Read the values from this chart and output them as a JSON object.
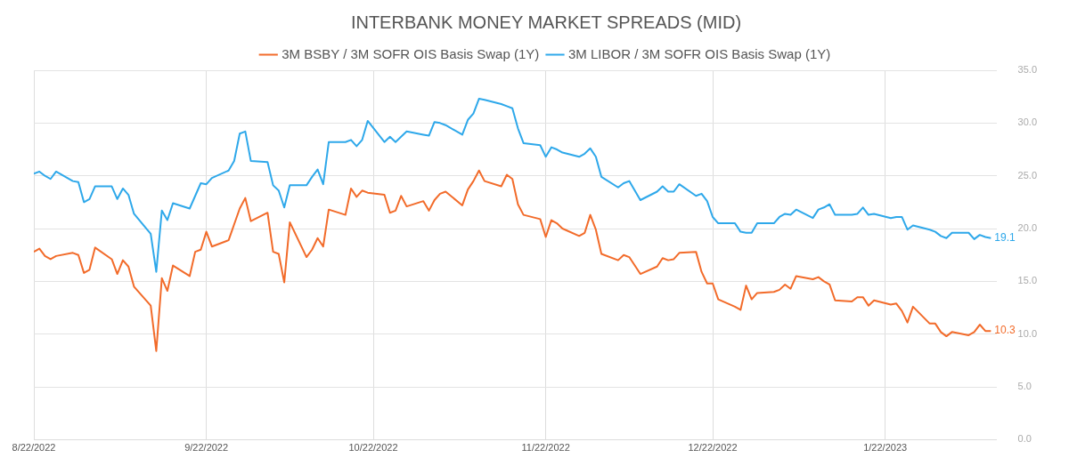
{
  "chart_data": {
    "type": "line",
    "title": "INTERBANK MONEY MARKET SPREADS (MID)",
    "x": [
      "2022-08-22",
      "2022-08-23",
      "2022-08-24",
      "2022-08-25",
      "2022-08-26",
      "2022-08-29",
      "2022-08-30",
      "2022-08-31",
      "2022-09-01",
      "2022-09-02",
      "2022-09-05",
      "2022-09-06",
      "2022-09-07",
      "2022-09-08",
      "2022-09-09",
      "2022-09-12",
      "2022-09-13",
      "2022-09-14",
      "2022-09-15",
      "2022-09-16",
      "2022-09-19",
      "2022-09-20",
      "2022-09-21",
      "2022-09-22",
      "2022-09-23",
      "2022-09-26",
      "2022-09-27",
      "2022-09-28",
      "2022-09-29",
      "2022-09-30",
      "2022-10-03",
      "2022-10-04",
      "2022-10-05",
      "2022-10-06",
      "2022-10-07",
      "2022-10-10",
      "2022-10-11",
      "2022-10-12",
      "2022-10-13",
      "2022-10-14",
      "2022-10-17",
      "2022-10-18",
      "2022-10-19",
      "2022-10-20",
      "2022-10-21",
      "2022-10-24",
      "2022-10-25",
      "2022-10-26",
      "2022-10-27",
      "2022-10-28",
      "2022-10-31",
      "2022-11-01",
      "2022-11-02",
      "2022-11-03",
      "2022-11-04",
      "2022-11-07",
      "2022-11-08",
      "2022-11-09",
      "2022-11-10",
      "2022-11-11",
      "2022-11-14",
      "2022-11-15",
      "2022-11-16",
      "2022-11-17",
      "2022-11-18",
      "2022-11-21",
      "2022-11-22",
      "2022-11-23",
      "2022-11-24",
      "2022-11-25",
      "2022-11-28",
      "2022-11-29",
      "2022-11-30",
      "2022-12-01",
      "2022-12-02",
      "2022-12-05",
      "2022-12-06",
      "2022-12-07",
      "2022-12-08",
      "2022-12-09",
      "2022-12-12",
      "2022-12-13",
      "2022-12-14",
      "2022-12-15",
      "2022-12-16",
      "2022-12-19",
      "2022-12-20",
      "2022-12-21",
      "2022-12-22",
      "2022-12-23",
      "2022-12-26",
      "2022-12-27",
      "2022-12-28",
      "2022-12-29",
      "2022-12-30",
      "2023-01-02",
      "2023-01-03",
      "2023-01-04",
      "2023-01-05",
      "2023-01-06",
      "2023-01-09",
      "2023-01-10",
      "2023-01-11",
      "2023-01-12",
      "2023-01-13",
      "2023-01-16",
      "2023-01-17",
      "2023-01-18",
      "2023-01-19",
      "2023-01-20",
      "2023-01-23",
      "2023-01-24",
      "2023-01-25",
      "2023-01-26",
      "2023-01-27",
      "2023-01-30",
      "2023-01-31",
      "2023-02-01",
      "2023-02-02",
      "2023-02-03",
      "2023-02-06",
      "2023-02-07",
      "2023-02-08",
      "2023-02-09",
      "2023-02-10"
    ],
    "series": [
      {
        "name": "3M BSBY / 3M SOFR OIS Basis Swap (1Y)",
        "color": "#f26b2a",
        "values": [
          17.8,
          18.1,
          17.4,
          17.1,
          17.4,
          17.7,
          17.5,
          15.8,
          16.1,
          18.2,
          17.1,
          15.7,
          17.0,
          16.4,
          14.5,
          12.7,
          8.4,
          15.3,
          14.1,
          16.5,
          15.5,
          17.8,
          18.0,
          19.7,
          18.3,
          18.9,
          20.4,
          21.9,
          22.9,
          20.7,
          21.5,
          17.8,
          17.6,
          14.9,
          20.6,
          17.3,
          18.0,
          19.1,
          18.3,
          21.8,
          21.3,
          23.8,
          23.0,
          23.6,
          23.4,
          23.2,
          21.5,
          21.7,
          23.1,
          22.1,
          22.6,
          21.7,
          22.7,
          23.3,
          23.5,
          22.2,
          23.7,
          24.5,
          25.5,
          24.5,
          24.0,
          25.1,
          24.7,
          22.3,
          21.3,
          20.9,
          19.2,
          20.8,
          20.5,
          20.0,
          19.3,
          19.6,
          21.3,
          19.9,
          17.6,
          17.0,
          17.5,
          17.3,
          16.5,
          15.7,
          16.4,
          17.2,
          17.0,
          17.1,
          17.7,
          17.8,
          15.9,
          14.8,
          14.8,
          13.3,
          12.6,
          12.3,
          14.6,
          13.3,
          13.9,
          14.0,
          14.2,
          14.7,
          14.3,
          15.5,
          15.2,
          15.4,
          15.0,
          14.7,
          13.2,
          13.1,
          13.5,
          13.5,
          12.7,
          13.2,
          12.8,
          12.9,
          12.2,
          11.1,
          12.6,
          11.0,
          11.0,
          10.2,
          9.8,
          10.2,
          9.9,
          10.2,
          10.9,
          10.3,
          10.3
        ]
      },
      {
        "name": "3M LIBOR / 3M SOFR OIS Basis Swap (1Y)",
        "color": "#2ea8ea",
        "values": [
          25.2,
          25.4,
          25.0,
          24.7,
          25.4,
          24.5,
          24.4,
          22.5,
          22.8,
          24.0,
          24.0,
          22.8,
          23.8,
          23.2,
          21.4,
          19.5,
          15.9,
          21.7,
          20.8,
          22.4,
          21.9,
          23.1,
          24.3,
          24.2,
          24.8,
          25.5,
          26.4,
          29.0,
          29.2,
          26.4,
          26.3,
          24.1,
          23.6,
          22.0,
          24.1,
          24.1,
          24.9,
          25.6,
          24.2,
          28.2,
          28.2,
          28.4,
          27.8,
          28.4,
          30.2,
          28.2,
          28.7,
          28.2,
          28.7,
          29.2,
          28.9,
          28.8,
          30.1,
          30.0,
          29.8,
          28.9,
          30.3,
          30.9,
          32.3,
          32.2,
          31.8,
          31.6,
          31.4,
          29.5,
          28.1,
          27.9,
          26.8,
          27.7,
          27.5,
          27.2,
          26.8,
          27.1,
          27.6,
          26.8,
          24.9,
          23.9,
          24.3,
          24.5,
          23.6,
          22.7,
          23.5,
          24.0,
          23.5,
          23.5,
          24.2,
          23.1,
          23.3,
          22.6,
          21.1,
          20.5,
          20.5,
          19.7,
          19.6,
          19.6,
          20.5,
          20.5,
          21.1,
          21.4,
          21.3,
          21.8,
          21.0,
          21.8,
          22.0,
          22.3,
          21.3,
          21.3,
          21.4,
          22.0,
          21.3,
          21.4,
          21.0,
          21.1,
          21.1,
          19.9,
          20.3,
          19.9,
          19.7,
          19.3,
          19.1,
          19.6,
          19.6,
          19.0,
          19.4,
          19.2,
          19.1
        ]
      }
    ],
    "xlim": [
      "2022-08-22",
      "2023-02-11"
    ],
    "xticks": [
      {
        "value": "2022-08-22",
        "label": "8/22/2022"
      },
      {
        "value": "2022-09-22",
        "label": "9/22/2022"
      },
      {
        "value": "2022-10-22",
        "label": "10/22/2022"
      },
      {
        "value": "2022-11-22",
        "label": "11/22/2022"
      },
      {
        "value": "2022-12-22",
        "label": "12/22/2022"
      },
      {
        "value": "2023-01-22",
        "label": "1/22/2023"
      }
    ],
    "ylim": [
      0,
      35
    ],
    "yticks": [
      {
        "value": 0,
        "label": "0.0"
      },
      {
        "value": 5,
        "label": "5.0"
      },
      {
        "value": 10,
        "label": "10.0"
      },
      {
        "value": 15,
        "label": "15.0"
      },
      {
        "value": 20,
        "label": "20.0"
      },
      {
        "value": 25,
        "label": "25.0"
      },
      {
        "value": 30,
        "label": "30.0"
      },
      {
        "value": 35,
        "label": "35.0"
      }
    ],
    "annotations": [
      {
        "text": "19.1",
        "x": "2023-02-10",
        "y": 19.1
      },
      {
        "text": "10.3",
        "x": "2023-02-10",
        "y": 10.3
      }
    ],
    "grid": true,
    "legend": "top",
    "marker": "none",
    "line_style": "solid"
  }
}
